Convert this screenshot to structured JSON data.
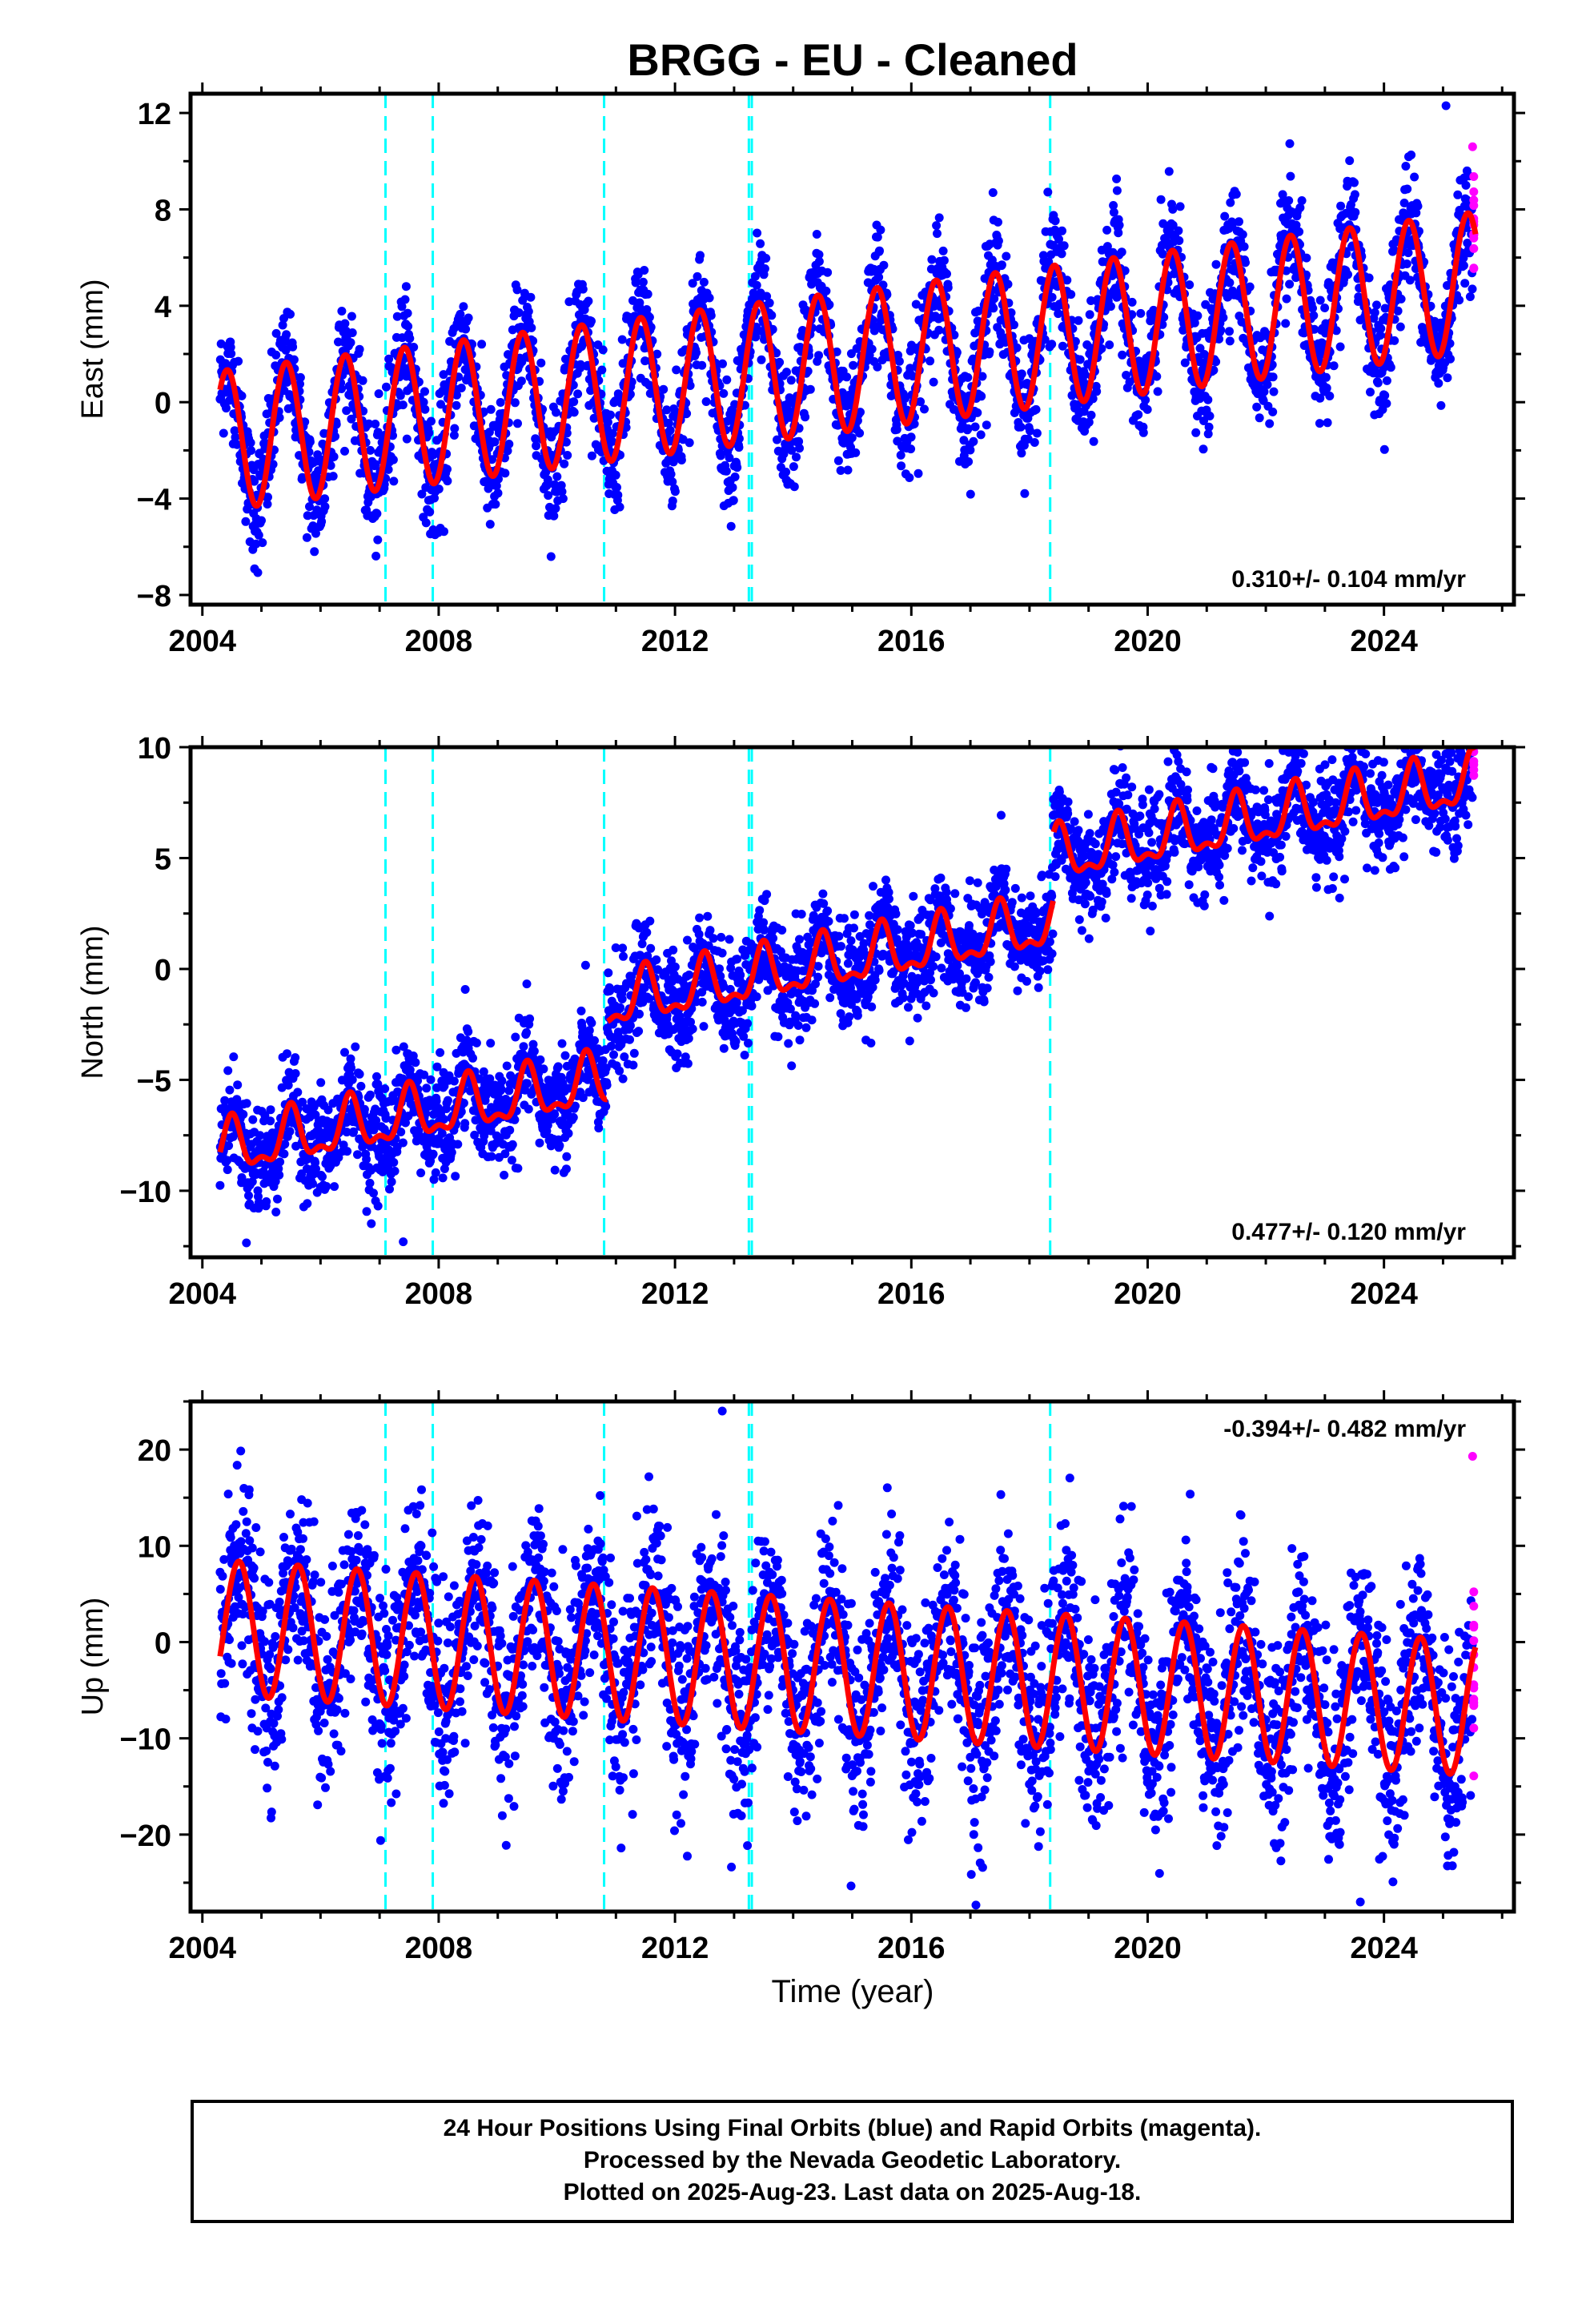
{
  "title": "BRGG  - EU - Cleaned",
  "footer": {
    "line1": "24 Hour Positions Using Final Orbits (blue) and Rapid Orbits (magenta).",
    "line2": "Processed by the Nevada Geodetic Laboratory.",
    "line3": "Plotted on 2025-Aug-23. Last data on 2025-Aug-18."
  },
  "colors": {
    "final_orbits": "#0000ff",
    "rapid_orbits": "#ff00ff",
    "model_fit": "#ff0000",
    "equipment_change": "#00ffff"
  },
  "chart_data": [
    {
      "type": "scatter",
      "panel": "east",
      "ylabel": "East (mm)",
      "xlabel": "",
      "xlim": [
        2003.8,
        2026.2
      ],
      "ylim": [
        -8.4,
        12.8
      ],
      "x_ticks": [
        2004,
        2008,
        2012,
        2016,
        2020,
        2024
      ],
      "y_ticks": [
        -8,
        -4,
        0,
        4,
        8,
        12
      ],
      "rate_label": "0.310+/- 0.104 mm/yr",
      "rate_label_position": "bottom-right",
      "equipment_changes": [
        2007.1,
        2007.9,
        2010.8,
        2013.25,
        2013.3,
        2018.35
      ],
      "data_start": 2004.3,
      "data_end": 2025.55,
      "rapid_start": 2025.5,
      "model": {
        "offset": -1.6,
        "trend": 0.31,
        "amplitude": 2.9,
        "phase_peak": 0.42,
        "noise": 1.25
      },
      "outliers": [
        {
          "x": 2025.05,
          "y": 12.3
        },
        {
          "x": 2025.5,
          "y": 10.6
        }
      ],
      "grid": false
    },
    {
      "type": "scatter",
      "panel": "north",
      "ylabel": "North (mm)",
      "xlabel": "",
      "xlim": [
        2003.8,
        2026.2
      ],
      "ylim": [
        -13.0,
        10.0
      ],
      "x_ticks": [
        2004,
        2008,
        2012,
        2016,
        2020,
        2024
      ],
      "y_ticks": [
        -10,
        -5,
        0,
        5,
        10
      ],
      "rate_label": "0.477+/- 0.120 mm/yr",
      "rate_label_position": "bottom-right",
      "equipment_changes": [
        2007.1,
        2007.9,
        2010.8,
        2013.25,
        2013.3,
        2018.35
      ],
      "data_start": 2004.3,
      "data_end": 2025.55,
      "rapid_start": 2025.5,
      "steps": [
        {
          "x": 2010.85,
          "dy": 3.5
        },
        {
          "x": 2018.4,
          "dy": 3.0
        }
      ],
      "model": {
        "offset": -8.2,
        "trend": 0.477,
        "amplitude": 1.1,
        "phase_peak": 0.5,
        "noise": 1.2
      },
      "outliers": [
        {
          "x": 2007.4,
          "y": -12.3
        },
        {
          "x": 2023.9,
          "y": 9.4
        }
      ],
      "grid": false
    },
    {
      "type": "scatter",
      "panel": "up",
      "ylabel": "Up (mm)",
      "xlabel": "Time (year)",
      "xlim": [
        2003.8,
        2026.2
      ],
      "ylim": [
        -28.0,
        25.0
      ],
      "x_ticks": [
        2004,
        2008,
        2012,
        2016,
        2020,
        2024
      ],
      "y_ticks": [
        -20,
        -10,
        0,
        10,
        20
      ],
      "rate_label": "-0.394+/- 0.482 mm/yr",
      "rate_label_position": "top-right",
      "equipment_changes": [
        2007.1,
        2007.9,
        2010.8,
        2013.25,
        2013.3,
        2018.35
      ],
      "data_start": 2004.3,
      "data_end": 2025.55,
      "rapid_start": 2025.5,
      "model": {
        "offset": 1.5,
        "trend": -0.394,
        "amplitude": 7.0,
        "phase_peak": 0.62,
        "noise": 5.2
      },
      "outliers": [
        {
          "x": 2012.8,
          "y": 24.0
        },
        {
          "x": 2023.6,
          "y": -27.0
        },
        {
          "x": 2025.5,
          "y": 19.3
        }
      ],
      "grid": false
    }
  ]
}
